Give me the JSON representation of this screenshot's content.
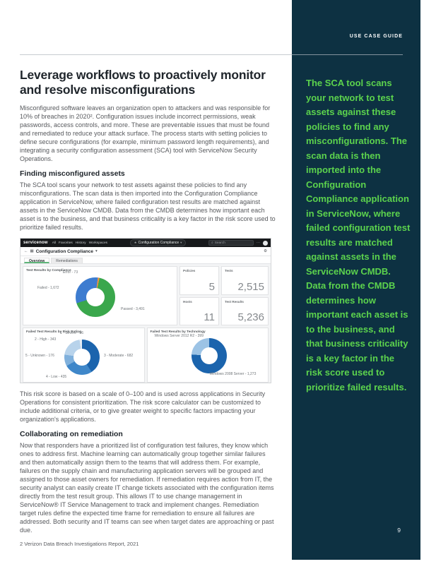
{
  "page": {
    "header_label": "USE CASE GUIDE",
    "page_number": "9",
    "sidebar_bg": "#0d3142",
    "accent_green": "#5cd34d"
  },
  "sidebar": {
    "text": "The SCA tool scans your network to test assets against these policies to find any misconfigurations. The scan data is then imported into the Configuration Compliance application in ServiceNow, where failed configuration test results are matched against assets in the ServiceNow CMDB. Data from the CMDB determines how important each asset is to the business, and that business criticality is a key factor in the risk score used to prioritize failed results."
  },
  "main": {
    "title": "Leverage workflows to proactively monitor and resolve misconfigurations",
    "intro": "Misconfigured software leaves an organization open to attackers and was responsible for 10% of breaches in 2020². Configuration issues include incorrect permissions, weak passwords, access controls, and more. These are preventable issues that must be found and remediated to reduce your attack surface. The process starts with setting policies to define secure configurations (for example, minimum password length requirements), and integrating a security configuration assessment (SCA) tool with ServiceNow Security Operations.",
    "section1": {
      "heading": "Finding misconfigured assets",
      "body": "The SCA tool scans your network to test assets against these policies to find any misconfigurations. The scan data is then imported into the Configuration Compliance application in ServiceNow, where failed configuration test results are matched against assets in the ServiceNow CMDB. Data from the CMDB determines how important each asset is to the business, and that business criticality is a key factor in the risk score used to prioritize failed results."
    },
    "after_image": "This risk score is based on a scale of 0–100 and is used across applications in Security Operations for consistent prioritization. The risk score calculator can be customized to include additional criteria, or to give greater weight to specific factors impacting your organization's applications.",
    "section2": {
      "heading": "Collaborating on remediation",
      "body": "Now that responders have a prioritized list of configuration test failures, they know which ones to address first. Machine learning can automatically group together similar failures and then automatically assign them to the teams that will address them. For example, failures on the supply chain and manufacturing application servers will be grouped and assigned to those asset owners for remediation. If remediation requires action from IT, the security analyst can easily create IT change tickets associated with the configuration items directly from the test result group. This allows IT to use change management in ServiceNow® IT Service Management to track and implement changes. Remediation target rules define the expected time frame for remediation to ensure all failures are addressed. Both security and IT teams can see when target dates are approaching or past due.",
      "footnote": "2 Verizon Data Breach Investigations Report, 2021"
    }
  },
  "screenshot": {
    "nav": {
      "logo": "servicenow",
      "items": [
        "All",
        "Favorites",
        "History",
        "Workspaces"
      ],
      "context": "Configuration Compliance",
      "search_placeholder": "Search"
    },
    "breadcrumb": "Configuration Compliance",
    "tabs": [
      "Overview",
      "Remediations"
    ],
    "stats": [
      {
        "label": "Policies",
        "value": "5"
      },
      {
        "label": "Tests",
        "value": "2,515"
      },
      {
        "label": "Hosts",
        "value": "11"
      },
      {
        "label": "Test Results",
        "value": "5,236"
      }
    ]
  },
  "icons": {
    "search": "⌕",
    "star": "★",
    "caret": "▾",
    "back": "←",
    "grid": "▦",
    "gear": "⚙",
    "dots": "···"
  },
  "chart_data": [
    {
      "type": "pie",
      "title": "Test Results by Compliance",
      "legend_position": "callout-labels",
      "slices": [
        {
          "label": "Passed",
          "value": 3491,
          "color": "#3aa74c",
          "display": "Passed - 3,491"
        },
        {
          "label": "Failed",
          "value": 1672,
          "color": "#3d7cd0",
          "display": "Failed - 1,672"
        },
        {
          "label": "Error",
          "value": 73,
          "color": "#f0923e",
          "display": "Error - 73"
        }
      ]
    },
    {
      "type": "pie",
      "title": "Failed Test Results by Risk Rating",
      "legend_position": "callout-labels",
      "slices": [
        {
          "label": "1 - Severe",
          "value": 36,
          "color": "#e8eff6",
          "display": "1 - Severe - 36"
        },
        {
          "label": "3 - Moderate",
          "value": 682,
          "color": "#1b64ad",
          "display": "3 - Moderate - 682"
        },
        {
          "label": "4 - Low",
          "value": 435,
          "color": "#3f87c9",
          "display": "4 - Low - 435"
        },
        {
          "label": "5 - Unknown",
          "value": 176,
          "color": "#7fb0dc",
          "display": "5 - Unknown - 176"
        },
        {
          "label": "2 - High",
          "value": 343,
          "color": "#b8d3eb",
          "display": "2 - High - 343"
        }
      ]
    },
    {
      "type": "pie",
      "title": "Failed Test Results by Technology",
      "legend_position": "callout-labels",
      "slices": [
        {
          "label": "Windows 2008 Server",
          "value": 1273,
          "color": "#1b64ad",
          "display": "Windows 2008 Server - 1,273"
        },
        {
          "label": "Windows Server 2012 R2",
          "value": 399,
          "color": "#9cc3e5",
          "display": "Windows Server 2012 R2 - 399"
        }
      ]
    }
  ]
}
